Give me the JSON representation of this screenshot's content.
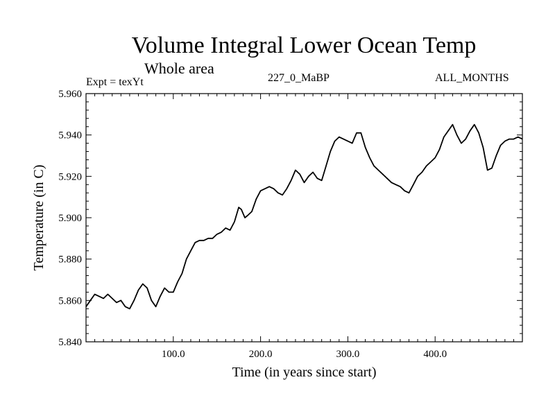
{
  "header": {
    "title": "Volume Integral Lower Ocean Temp",
    "subtitle": "Whole area",
    "experiment": "Expt = texYt",
    "run": "227_0_MaBP",
    "months": "ALL_MONTHS"
  },
  "chart_data": {
    "type": "line",
    "title": "Volume Integral Lower Ocean Temp",
    "subtitle": "Whole area",
    "xlabel": "Time (in years since start)",
    "ylabel": "Temperature (in C)",
    "xlim": [
      0,
      500
    ],
    "ylim": [
      5.84,
      5.96
    ],
    "xticks": [
      100,
      200,
      300,
      400
    ],
    "xtick_labels": [
      "100.0",
      "200.0",
      "300.0",
      "400.0"
    ],
    "yticks": [
      5.84,
      5.86,
      5.88,
      5.9,
      5.92,
      5.94,
      5.96
    ],
    "ytick_labels": [
      "5.840",
      "5.860",
      "5.880",
      "5.900",
      "5.920",
      "5.940",
      "5.960"
    ],
    "grid": false,
    "series": [
      {
        "color": "#000000",
        "x": [
          0,
          5,
          10,
          15,
          20,
          25,
          30,
          35,
          40,
          45,
          50,
          55,
          60,
          65,
          70,
          75,
          80,
          85,
          90,
          95,
          100,
          105,
          110,
          115,
          120,
          125,
          130,
          135,
          140,
          145,
          150,
          155,
          160,
          165,
          170,
          175,
          178,
          182,
          185,
          190,
          195,
          200,
          205,
          210,
          215,
          220,
          225,
          230,
          235,
          240,
          245,
          250,
          255,
          260,
          265,
          270,
          275,
          280,
          285,
          290,
          295,
          300,
          305,
          310,
          315,
          320,
          325,
          330,
          335,
          340,
          345,
          350,
          355,
          360,
          365,
          370,
          375,
          380,
          385,
          390,
          395,
          400,
          405,
          410,
          415,
          420,
          425,
          430,
          435,
          440,
          445,
          450,
          455,
          460,
          465,
          470,
          475,
          480,
          485,
          490,
          495,
          500
        ],
        "y": [
          5.857,
          5.86,
          5.863,
          5.862,
          5.861,
          5.863,
          5.861,
          5.859,
          5.86,
          5.857,
          5.856,
          5.86,
          5.865,
          5.868,
          5.866,
          5.86,
          5.857,
          5.862,
          5.866,
          5.864,
          5.864,
          5.869,
          5.873,
          5.88,
          5.884,
          5.888,
          5.889,
          5.889,
          5.89,
          5.89,
          5.892,
          5.893,
          5.895,
          5.894,
          5.898,
          5.905,
          5.904,
          5.9,
          5.901,
          5.903,
          5.909,
          5.913,
          5.914,
          5.915,
          5.914,
          5.912,
          5.911,
          5.914,
          5.918,
          5.923,
          5.921,
          5.917,
          5.92,
          5.922,
          5.919,
          5.918,
          5.925,
          5.932,
          5.937,
          5.939,
          5.938,
          5.937,
          5.936,
          5.941,
          5.941,
          5.934,
          5.929,
          5.925,
          5.923,
          5.921,
          5.919,
          5.917,
          5.916,
          5.915,
          5.913,
          5.912,
          5.916,
          5.92,
          5.922,
          5.925,
          5.927,
          5.929,
          5.933,
          5.939,
          5.942,
          5.945,
          5.94,
          5.936,
          5.938,
          5.942,
          5.945,
          5.941,
          5.934,
          5.923,
          5.924,
          5.93,
          5.935,
          5.937,
          5.938,
          5.938,
          5.939,
          5.938
        ]
      }
    ]
  }
}
